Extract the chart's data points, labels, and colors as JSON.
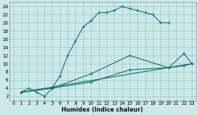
{
  "xlabel": "Humidex (Indice chaleur)",
  "bg_color": "#cce8e8",
  "grid_color": "#99cccc",
  "line_color": "#1a6b6b",
  "xlim": [
    -0.5,
    23.5
  ],
  "ylim": [
    1,
    25
  ],
  "xticks": [
    0,
    1,
    2,
    3,
    4,
    5,
    6,
    7,
    8,
    9,
    10,
    11,
    12,
    13,
    14,
    15,
    16,
    17,
    18,
    19,
    20,
    21,
    22,
    23
  ],
  "yticks": [
    2,
    4,
    6,
    8,
    10,
    12,
    14,
    16,
    18,
    20,
    22,
    24
  ],
  "series": [
    {
      "x": [
        1,
        2,
        3,
        4,
        5,
        6,
        7,
        8,
        9,
        10,
        11,
        12,
        13,
        14,
        15,
        16,
        17,
        18,
        19,
        20
      ],
      "y": [
        3,
        4,
        3,
        2,
        4,
        7,
        12,
        15.5,
        19,
        20.5,
        22.5,
        22.5,
        23,
        24,
        23.5,
        23,
        22.5,
        22,
        20,
        20
      ]
    },
    {
      "x": [
        1,
        5,
        10,
        15,
        20,
        22,
        23
      ],
      "y": [
        3,
        4,
        7.5,
        12,
        9,
        12.5,
        10
      ]
    },
    {
      "x": [
        1,
        5,
        10,
        15,
        20,
        22,
        23
      ],
      "y": [
        3,
        4,
        5.5,
        8.5,
        9,
        9.5,
        10
      ]
    },
    {
      "x": [
        1,
        23
      ],
      "y": [
        3,
        10
      ]
    }
  ]
}
